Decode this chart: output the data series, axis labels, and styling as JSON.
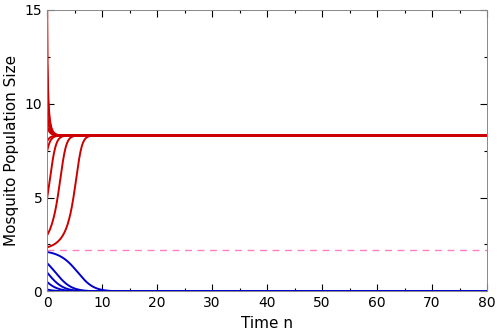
{
  "title": "",
  "xlabel": "Time n",
  "ylabel": "Mosquito Population Size",
  "xlim": [
    0,
    80
  ],
  "ylim": [
    0,
    15
  ],
  "xticks": [
    0,
    10,
    20,
    30,
    40,
    50,
    60,
    70,
    80
  ],
  "yticks": [
    0,
    5,
    10,
    15
  ],
  "stable_eq": 8.3,
  "unstable_eq": 2.2,
  "red_init": [
    15.0,
    12.0,
    9.5,
    8.8,
    8.0,
    7.5,
    5.0,
    3.0,
    2.35
  ],
  "blue_init": [
    2.1,
    1.5,
    1.0,
    0.5,
    0.1
  ],
  "red_color": "#cc0000",
  "blue_color": "#0000cc",
  "dashed_color": "#ff80c0",
  "line_width": 1.4,
  "c_param": 0.04,
  "n_points": 2000
}
